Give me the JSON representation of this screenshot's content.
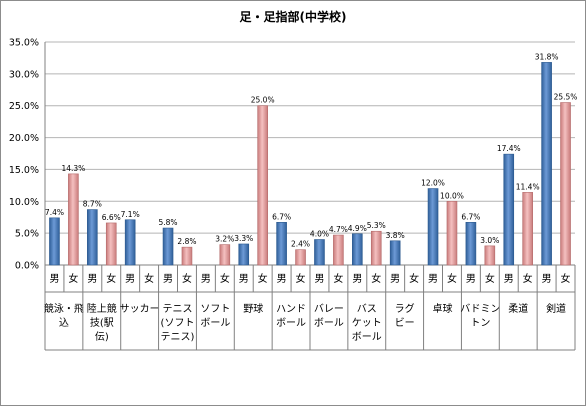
{
  "chart_data": {
    "type": "bar",
    "title": "足・足指部(中学校)",
    "ylim": [
      0,
      35
    ],
    "yticks": [
      "0.0%",
      "5.0%",
      "10.0%",
      "15.0%",
      "20.0%",
      "25.0%",
      "30.0%",
      "35.0%"
    ],
    "grid": true,
    "legend": "none",
    "sex_labels": [
      "男",
      "女"
    ],
    "colors": {
      "male": "#4f81bd",
      "female": "#e6a3a3"
    },
    "categories": [
      {
        "label_lines": [
          "競泳・飛",
          "込"
        ],
        "male": 7.4,
        "female": 14.3,
        "male_label": "7.4%",
        "female_label": "14.3%"
      },
      {
        "label_lines": [
          "陸上競",
          "技(駅",
          "伝)"
        ],
        "male": 8.7,
        "female": 6.6,
        "male_label": "8.7%",
        "female_label": "6.6%"
      },
      {
        "label_lines": [
          "サッカー"
        ],
        "male": 7.1,
        "female": null,
        "male_label": "7.1%",
        "female_label": ""
      },
      {
        "label_lines": [
          "テニス",
          "(ソフト",
          "テニス)"
        ],
        "male": 5.8,
        "female": 2.8,
        "male_label": "5.8%",
        "female_label": "2.8%"
      },
      {
        "label_lines": [
          "ソフト",
          "ボール"
        ],
        "male": null,
        "female": 3.2,
        "male_label": "",
        "female_label": "3.2%"
      },
      {
        "label_lines": [
          "野球"
        ],
        "male": 3.3,
        "female": 25.0,
        "male_label": "3.3%",
        "female_label": "25.0%"
      },
      {
        "label_lines": [
          "ハンド",
          "ボール"
        ],
        "male": 6.7,
        "female": 2.4,
        "male_label": "6.7%",
        "female_label": "2.4%"
      },
      {
        "label_lines": [
          "バレー",
          "ボール"
        ],
        "male": 4.0,
        "female": 4.7,
        "male_label": "4.0%",
        "female_label": "4.7%"
      },
      {
        "label_lines": [
          "バス",
          "ケット",
          "ボール"
        ],
        "male": 4.9,
        "female": 5.3,
        "male_label": "4.9%",
        "female_label": "5.3%"
      },
      {
        "label_lines": [
          "ラグ",
          "ビー"
        ],
        "male": 3.8,
        "female": null,
        "male_label": "3.8%",
        "female_label": ""
      },
      {
        "label_lines": [
          "卓球"
        ],
        "male": 12.0,
        "female": 10.0,
        "male_label": "12.0%",
        "female_label": "10.0%"
      },
      {
        "label_lines": [
          "バドミン",
          "トン"
        ],
        "male": 6.7,
        "female": 3.0,
        "male_label": "6.7%",
        "female_label": "3.0%"
      },
      {
        "label_lines": [
          "柔道"
        ],
        "male": 17.4,
        "female": 11.4,
        "male_label": "17.4%",
        "female_label": "11.4%"
      },
      {
        "label_lines": [
          "剣道"
        ],
        "male": 31.8,
        "female": 25.5,
        "male_label": "31.8%",
        "female_label": "25.5%"
      }
    ]
  }
}
